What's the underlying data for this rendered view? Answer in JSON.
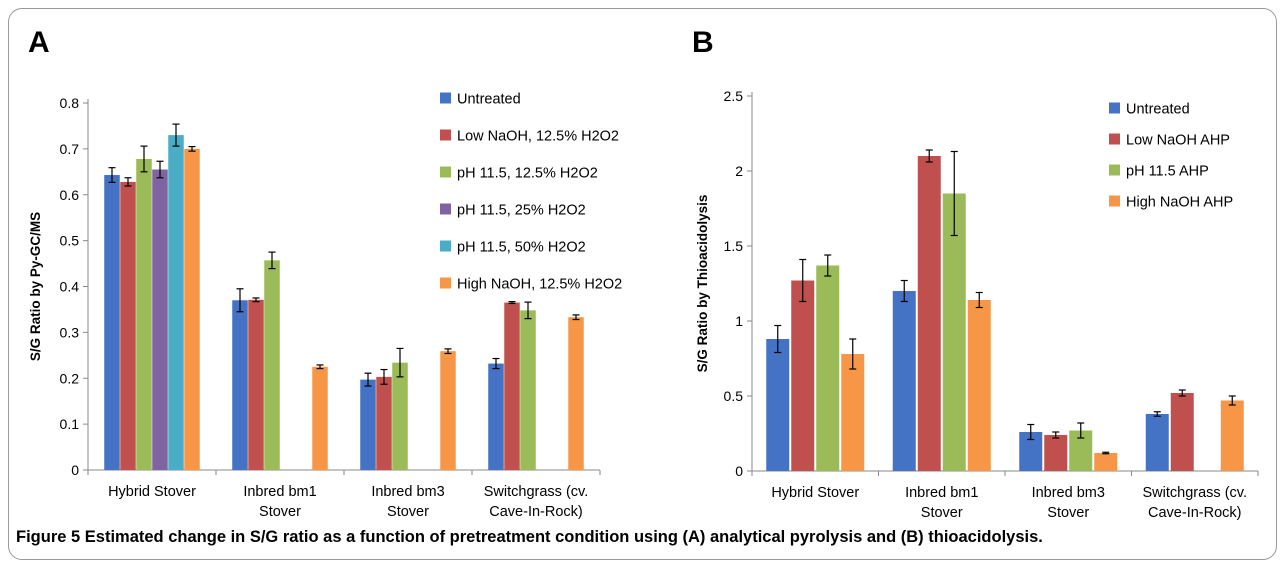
{
  "caption": {
    "label": "Figure 5",
    "text": "Estimated change in S/G ratio as a function of pretreatment condition using (A) analytical pyrolysis and (B) thioacidolysis."
  },
  "chart_data": [
    {
      "panel": "A",
      "type": "bar",
      "ylabel": "S/G Ratio by Py-GC/MS",
      "ylim": [
        0,
        0.8
      ],
      "yticks": [
        "0",
        "0.1",
        "0.2",
        "0.3",
        "0.4",
        "0.5",
        "0.6",
        "0.7",
        "0.8"
      ],
      "categories": [
        [
          "Hybrid Stover"
        ],
        [
          "Inbred bm1",
          "Stover"
        ],
        [
          "Inbred bm3",
          "Stover"
        ],
        [
          "Switchgrass (cv.",
          "Cave-In-Rock)"
        ]
      ],
      "legend_position": "right",
      "series": [
        {
          "name": "Untreated",
          "color": "#4472c4",
          "values": [
            0.643,
            0.37,
            0.197,
            0.232
          ],
          "errors": [
            0.016,
            0.025,
            0.014,
            0.011
          ]
        },
        {
          "name": "Low NaOH,  12.5% H2O2",
          "color": "#c0504d",
          "values": [
            0.628,
            0.371,
            0.203,
            0.365
          ],
          "errors": [
            0.009,
            0.004,
            0.016,
            0.002
          ]
        },
        {
          "name": "pH 11.5, 12.5% H2O2",
          "color": "#9bbb59",
          "values": [
            0.678,
            0.457,
            0.234,
            0.348
          ],
          "errors": [
            0.028,
            0.018,
            0.031,
            0.018
          ]
        },
        {
          "name": "pH 11.5, 25% H2O2",
          "color": "#8064a2",
          "values": [
            0.655,
            null,
            null,
            null
          ],
          "errors": [
            0.018,
            null,
            null,
            null
          ]
        },
        {
          "name": "pH 11.5, 50% H2O2",
          "color": "#4bacc6",
          "values": [
            0.73,
            null,
            null,
            null
          ],
          "errors": [
            0.024,
            null,
            null,
            null
          ]
        },
        {
          "name": "High NaOH, 12.5% H2O2",
          "color": "#f79646",
          "values": [
            0.7,
            0.225,
            0.259,
            0.333
          ],
          "errors": [
            0.005,
            0.004,
            0.005,
            0.005
          ]
        }
      ]
    },
    {
      "panel": "B",
      "type": "bar",
      "ylabel": "S/G Ratio by Thioacidolysis",
      "ylim": [
        0,
        2.5
      ],
      "yticks": [
        "0",
        "0.5",
        "1",
        "1.5",
        "2",
        "2.5"
      ],
      "categories": [
        [
          "Hybrid Stover"
        ],
        [
          "Inbred bm1",
          "Stover"
        ],
        [
          "Inbred bm3",
          "Stover"
        ],
        [
          "Switchgrass (cv.",
          "Cave-In-Rock)"
        ]
      ],
      "legend_position": "right",
      "series": [
        {
          "name": "Untreated",
          "color": "#4472c4",
          "values": [
            0.88,
            1.2,
            0.26,
            0.38
          ],
          "errors": [
            0.09,
            0.07,
            0.05,
            0.015
          ]
        },
        {
          "name": "Low NaOH AHP",
          "color": "#c0504d",
          "values": [
            1.27,
            2.1,
            0.24,
            0.52
          ],
          "errors": [
            0.14,
            0.04,
            0.02,
            0.02
          ]
        },
        {
          "name": "pH 11.5 AHP",
          "color": "#9bbb59",
          "values": [
            1.37,
            1.85,
            0.27,
            null
          ],
          "errors": [
            0.07,
            0.28,
            0.05,
            null
          ]
        },
        {
          "name": "High NaOH AHP",
          "color": "#f79646",
          "values": [
            0.78,
            1.14,
            0.12,
            0.47
          ],
          "errors": [
            0.1,
            0.05,
            0.005,
            0.03
          ]
        }
      ]
    }
  ]
}
